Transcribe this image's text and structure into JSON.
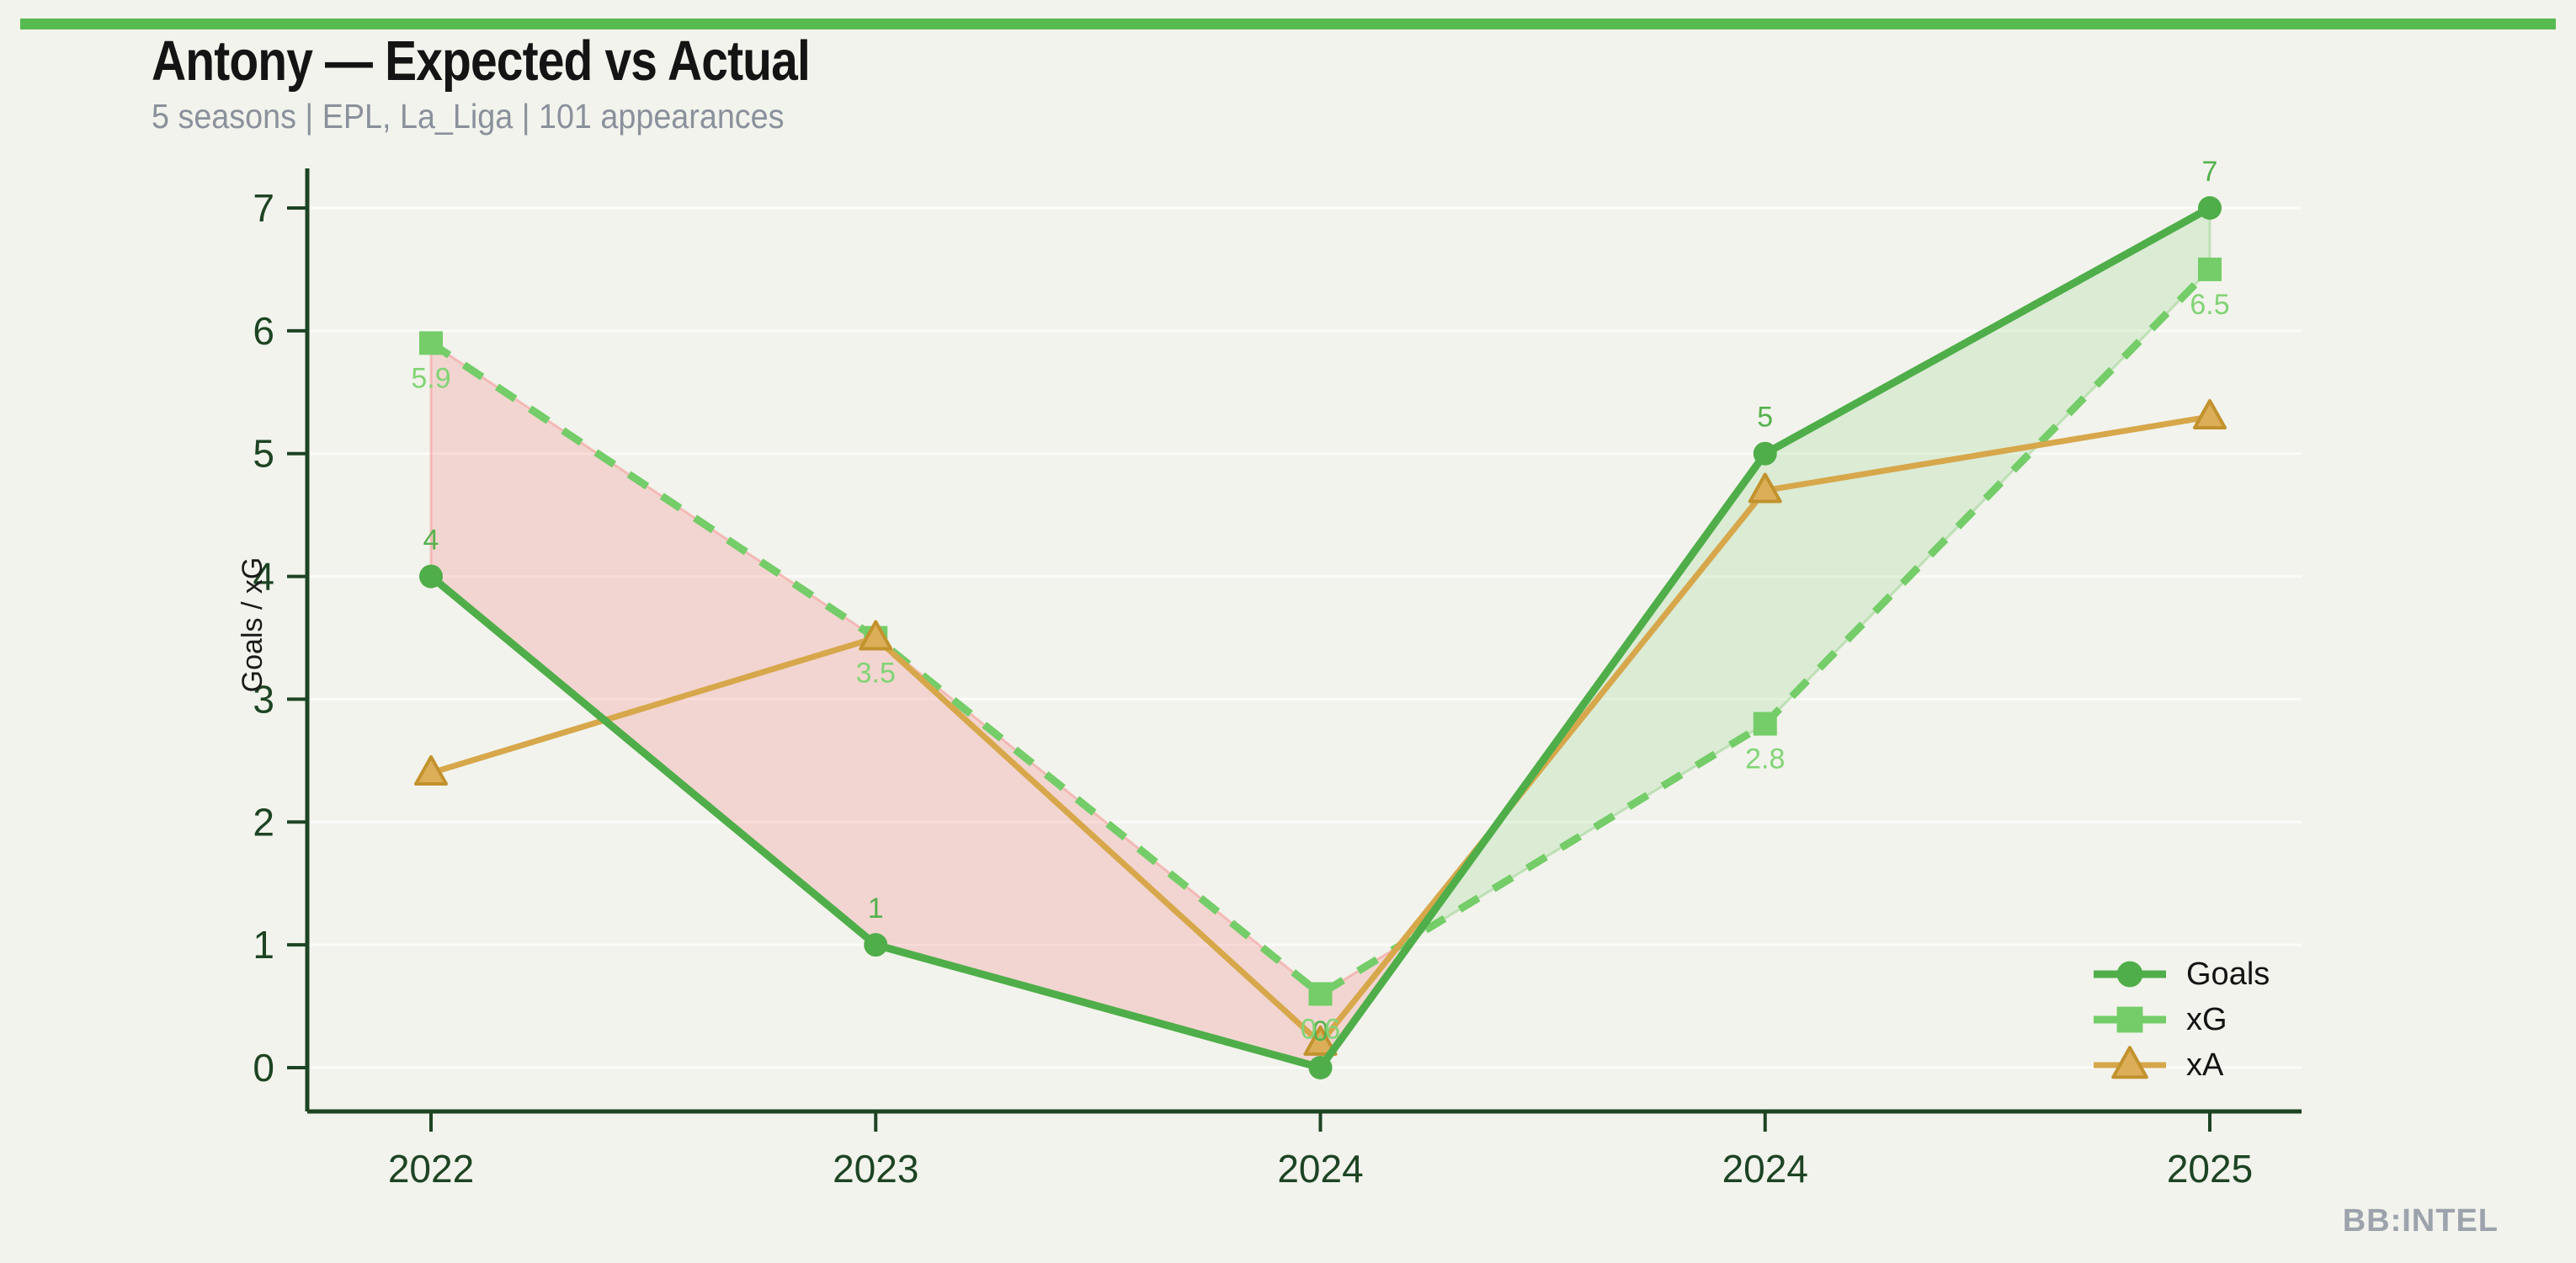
{
  "header": {
    "title": "Antony — Expected vs Actual",
    "subtitle": "5 seasons | EPL, La_Liga | 101 appearances"
  },
  "branding": {
    "watermark": "BB:INTEL"
  },
  "colors": {
    "background": "#f2f3ec",
    "top_bar": "#56ba4e",
    "axis": "#1d4423",
    "tick_label": "#1d4423",
    "title_text": "#141414",
    "subtitle_text": "#8a919c",
    "legend_text": "#131313",
    "ylabel_text": "#1a1a1a",
    "watermark_text": "#9ca3ac",
    "grid": "rgba(255,255,255,0.7)",
    "under_fill": "rgba(244,125,125,0.25)",
    "under_edge": "rgba(244,125,125,0.4)",
    "over_fill": "rgba(150,210,140,0.25)",
    "over_edge": "rgba(150,210,140,0.5)"
  },
  "chart_data": {
    "type": "line",
    "title": "Antony — Expected vs Actual",
    "subtitle": "5 seasons | EPL, La_Liga | 101 appearances",
    "categories": [
      "2022",
      "2023",
      "2024",
      "2024",
      "2025"
    ],
    "series": [
      {
        "name": "Goals",
        "values": [
          4,
          1,
          0,
          5,
          7
        ],
        "point_labels": [
          "4",
          "1",
          "0",
          "5",
          "7"
        ],
        "color": "#4fae49",
        "label_color": "#55b24d",
        "marker": "circle",
        "line_style": "solid",
        "line_width": 9,
        "label_side": "above"
      },
      {
        "name": "xG",
        "values": [
          5.9,
          3.5,
          0.6,
          2.8,
          6.5
        ],
        "point_labels": [
          "5.9",
          "3.5",
          "0.6",
          "2.8",
          "6.5"
        ],
        "color": "#74cd68",
        "label_color": "#82d476",
        "marker": "square",
        "line_style": "dashed",
        "line_width": 9,
        "label_side": "below"
      },
      {
        "name": "xA",
        "values": [
          2.4,
          3.5,
          0.2,
          4.7,
          5.3
        ],
        "point_labels": [],
        "color": "#d7a74b",
        "marker": "triangle",
        "marker_fill": "#ddae58",
        "marker_stroke": "#c2922e",
        "line_style": "solid",
        "line_width": 7,
        "label_side": "none"
      }
    ],
    "fill_between": {
      "upper_series": "Goals",
      "lower_series": "xG",
      "over_meaning": "Goals above xG",
      "under_meaning": "xG above Goals"
    },
    "ylabel": "Goals / xG",
    "xlabel": "",
    "ylim": [
      0,
      7
    ],
    "yticks": [
      0,
      1,
      2,
      3,
      4,
      5,
      6,
      7
    ],
    "grid": "horizontal",
    "legend": {
      "position": "lower right",
      "entries": [
        "Goals",
        "xG",
        "xA"
      ]
    }
  }
}
